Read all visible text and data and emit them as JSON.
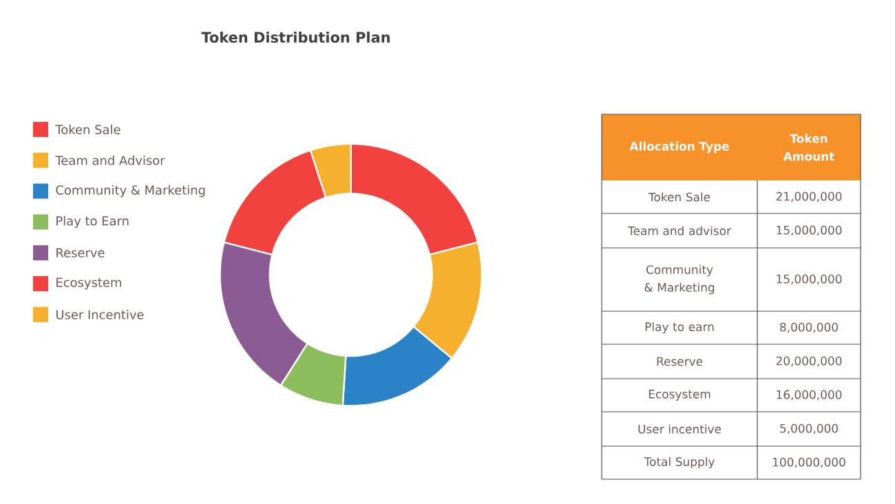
{
  "chart_data": {
    "type": "donut",
    "title": "Token Distribution Plan",
    "categories": [
      "Token Sale",
      "Team and Advisor",
      "Community & Marketing",
      "Play to Earn",
      "Reserve",
      "Ecosystem",
      "User Incentive"
    ],
    "values": [
      21,
      15,
      15,
      8,
      20,
      16,
      5
    ],
    "colors": [
      "#f2423f",
      "#f7b02e",
      "#2a83c6",
      "#8cbd5c",
      "#8b5c94",
      "#f2423f",
      "#f7b02e"
    ],
    "legend": "left",
    "annotations": [
      "Allocation Type",
      "Token Amount",
      "Token Sale",
      "21,000,000",
      "Team and advisor",
      "15,000,000",
      "Community & Marketing",
      "15,000,000",
      "Play to earn",
      "8,000,000",
      "Reserve",
      "20,000,000",
      "Ecosystem",
      "16,000,000",
      "User incentive",
      "5,000,000",
      "Total Supply",
      "100,000,000"
    ]
  }
}
